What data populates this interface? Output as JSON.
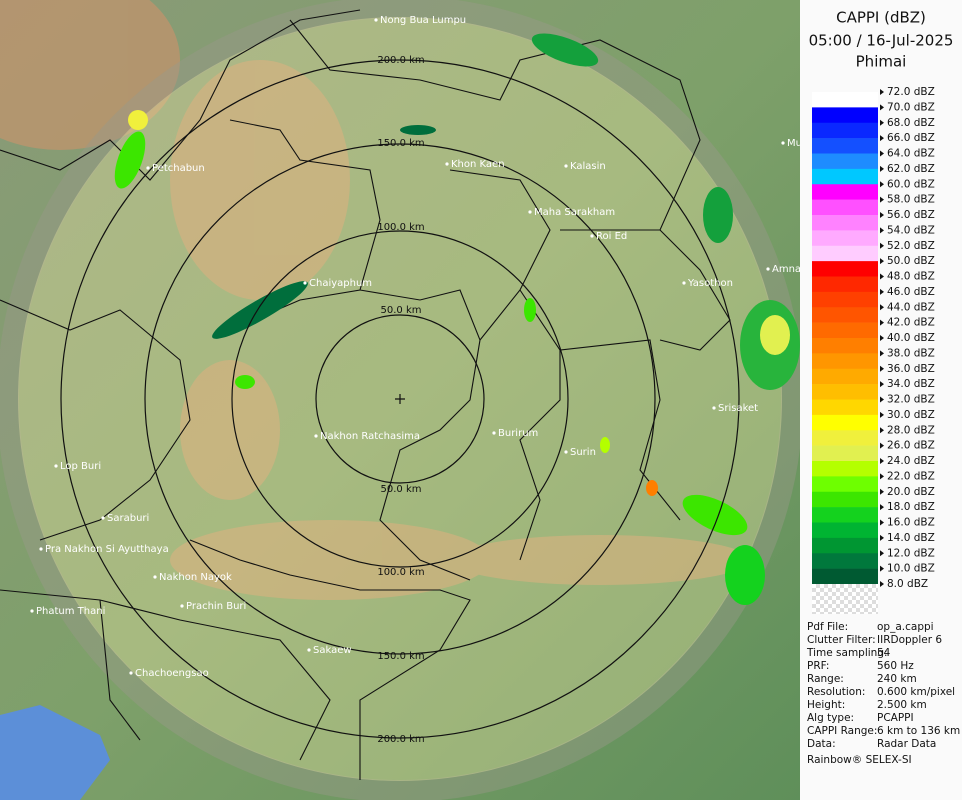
{
  "header": {
    "title": "CAPPI (dBZ)",
    "datetime": "05:00 / 16-Jul-2025",
    "site": "Phimai"
  },
  "range_labels": [
    "200.0 km",
    "150.0 km",
    "100.0 km",
    "50.0 km",
    "50.0 km",
    "100.0 km",
    "150.0 km",
    "200.0 km"
  ],
  "cities": [
    "Nong Bua Lumpu",
    "Khon Kaen",
    "Kalasin",
    "Maha Sarakham",
    "Roi Ed",
    "Petchabun",
    "Chaiyaphum",
    "Yasothon",
    "Amnat",
    "Mu",
    "Nakhon Ratchasima",
    "Burirum",
    "Surin",
    "Srisaket",
    "Lop Buri",
    "Saraburi",
    "Pra Nakhon Si Ayutthaya",
    "Nakhon Nayok",
    "Prachin Buri",
    "Phatum Thani",
    "Sakaew",
    "Chachoengsao"
  ],
  "legend": {
    "labels": [
      "72.0 dBZ",
      "70.0 dBZ",
      "68.0 dBZ",
      "66.0 dBZ",
      "64.0 dBZ",
      "62.0 dBZ",
      "60.0 dBZ",
      "58.0 dBZ",
      "56.0 dBZ",
      "54.0 dBZ",
      "52.0 dBZ",
      "50.0 dBZ",
      "48.0 dBZ",
      "46.0 dBZ",
      "44.0 dBZ",
      "42.0 dBZ",
      "40.0 dBZ",
      "38.0 dBZ",
      "36.0 dBZ",
      "34.0 dBZ",
      "32.0 dBZ",
      "30.0 dBZ",
      "28.0 dBZ",
      "26.0 dBZ",
      "24.0 dBZ",
      "22.0 dBZ",
      "20.0 dBZ",
      "18.0 dBZ",
      "16.0 dBZ",
      "14.0 dBZ",
      "12.0 dBZ",
      "10.0 dBZ",
      "8.0 dBZ"
    ],
    "colors": [
      "#ffffff",
      "#0000ff",
      "#0a28ff",
      "#1450ff",
      "#1e8cff",
      "#00c8ff",
      "#ff00ff",
      "#ff50ff",
      "#ff82ff",
      "#ffaaff",
      "#ffccff",
      "#ff0000",
      "#ff2800",
      "#ff4000",
      "#ff5500",
      "#ff6a00",
      "#ff7f00",
      "#ff9600",
      "#ffaa00",
      "#ffbe00",
      "#ffd700",
      "#ffff00",
      "#f0f03c",
      "#e1f050",
      "#b4ff00",
      "#6eff00",
      "#3ce600",
      "#14d21e",
      "#00b432",
      "#009632",
      "#00783c",
      "#005a32"
    ]
  },
  "info": [
    [
      "Pdf File:",
      "op_a.cappi"
    ],
    [
      "Clutter Filter:",
      "IIRDoppler 6"
    ],
    [
      "Time sampling:",
      "54"
    ],
    [
      "PRF:",
      "560 Hz"
    ],
    [
      "Range:",
      "240 km"
    ],
    [
      "Resolution:",
      "0.600 km/pixel"
    ],
    [
      "Height:",
      "2.500 km"
    ],
    [
      "Alg type:",
      "PCAPPI"
    ],
    [
      "CAPPI Range:",
      "6 km to 136 km"
    ],
    [
      "Data:",
      "Radar Data"
    ]
  ],
  "footer": "Rainbow® SELEX-SI"
}
